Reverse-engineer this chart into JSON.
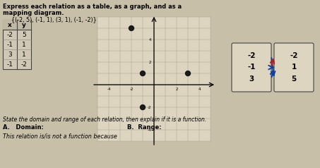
{
  "title_line1": "Express each relation as a table, as a graph, and as a",
  "title_line2": "mapping diagram.",
  "relation": "{(-2, 5), (-1, 1), (3, 1), (-1, -2)}",
  "table_headers": [
    "x",
    "y"
  ],
  "table_data": [
    [
      "-2",
      "5"
    ],
    [
      "-1",
      "1"
    ],
    [
      "3",
      "1"
    ],
    [
      "-1",
      "-2"
    ]
  ],
  "points": [
    [
      -2,
      5
    ],
    [
      -1,
      1
    ],
    [
      3,
      1
    ],
    [
      -1,
      -2
    ]
  ],
  "mapping_left": [
    "-2",
    "-1",
    "3"
  ],
  "mapping_right": [
    "-2",
    "1",
    "5"
  ],
  "state_text": "State the domain and range of each relation, then explain if it is a function.",
  "label_A": "A.   Domain:",
  "label_B": "B.  Range:",
  "label_C": "This relation is/is not a function because",
  "bg_color": "#c8bfa8",
  "table_bg": "#d0c8b5",
  "grid_color": "#aaa090",
  "grid_bg": "#ddd5c0",
  "point_color": "#1a1a1a",
  "mapping_box_color": "#ddd5c0",
  "arrow_color_blue": "#1040a0",
  "arrow_color_red": "#b02020"
}
